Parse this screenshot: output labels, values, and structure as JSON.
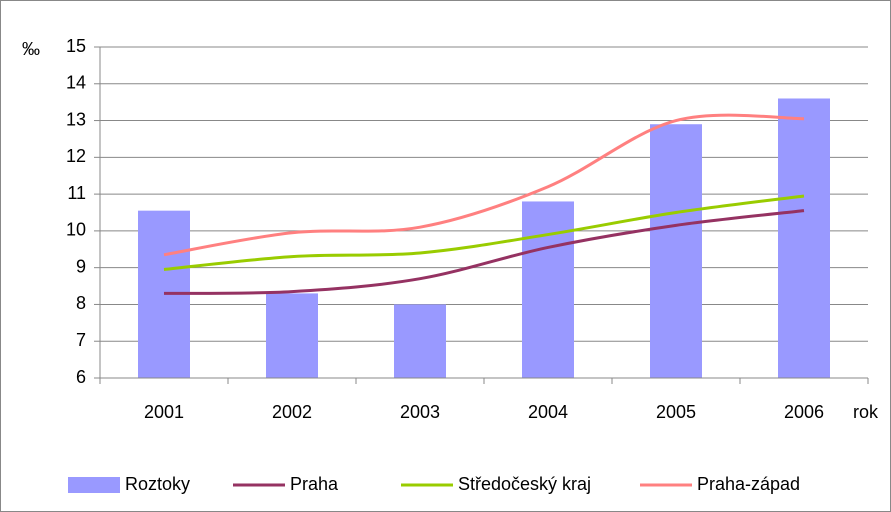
{
  "chart_data": {
    "type": "bar",
    "y_label": "‰",
    "x_label": "rok",
    "categories": [
      "2001",
      "2002",
      "2003",
      "2004",
      "2005",
      "2006"
    ],
    "series": [
      {
        "name": "Roztoky",
        "type": "bar",
        "color": "#9999ff",
        "values": [
          10.55,
          8.3,
          8.0,
          10.8,
          12.9,
          13.6
        ]
      },
      {
        "name": "Praha",
        "type": "line",
        "color": "#953262",
        "values": [
          8.3,
          8.35,
          8.7,
          9.55,
          10.15,
          10.55
        ]
      },
      {
        "name": "Středočeský kraj",
        "type": "line",
        "color": "#99cc00",
        "values": [
          8.95,
          9.3,
          9.4,
          9.9,
          10.5,
          10.95
        ]
      },
      {
        "name": "Praha-západ",
        "type": "line",
        "color": "#ff8080",
        "values": [
          9.35,
          9.95,
          10.1,
          11.2,
          13.0,
          13.05
        ]
      }
    ],
    "ylim": [
      6,
      15
    ],
    "yticks": [
      6,
      7,
      8,
      9,
      10,
      11,
      12,
      13,
      14,
      15
    ],
    "grid": true,
    "legend": "bottom"
  }
}
